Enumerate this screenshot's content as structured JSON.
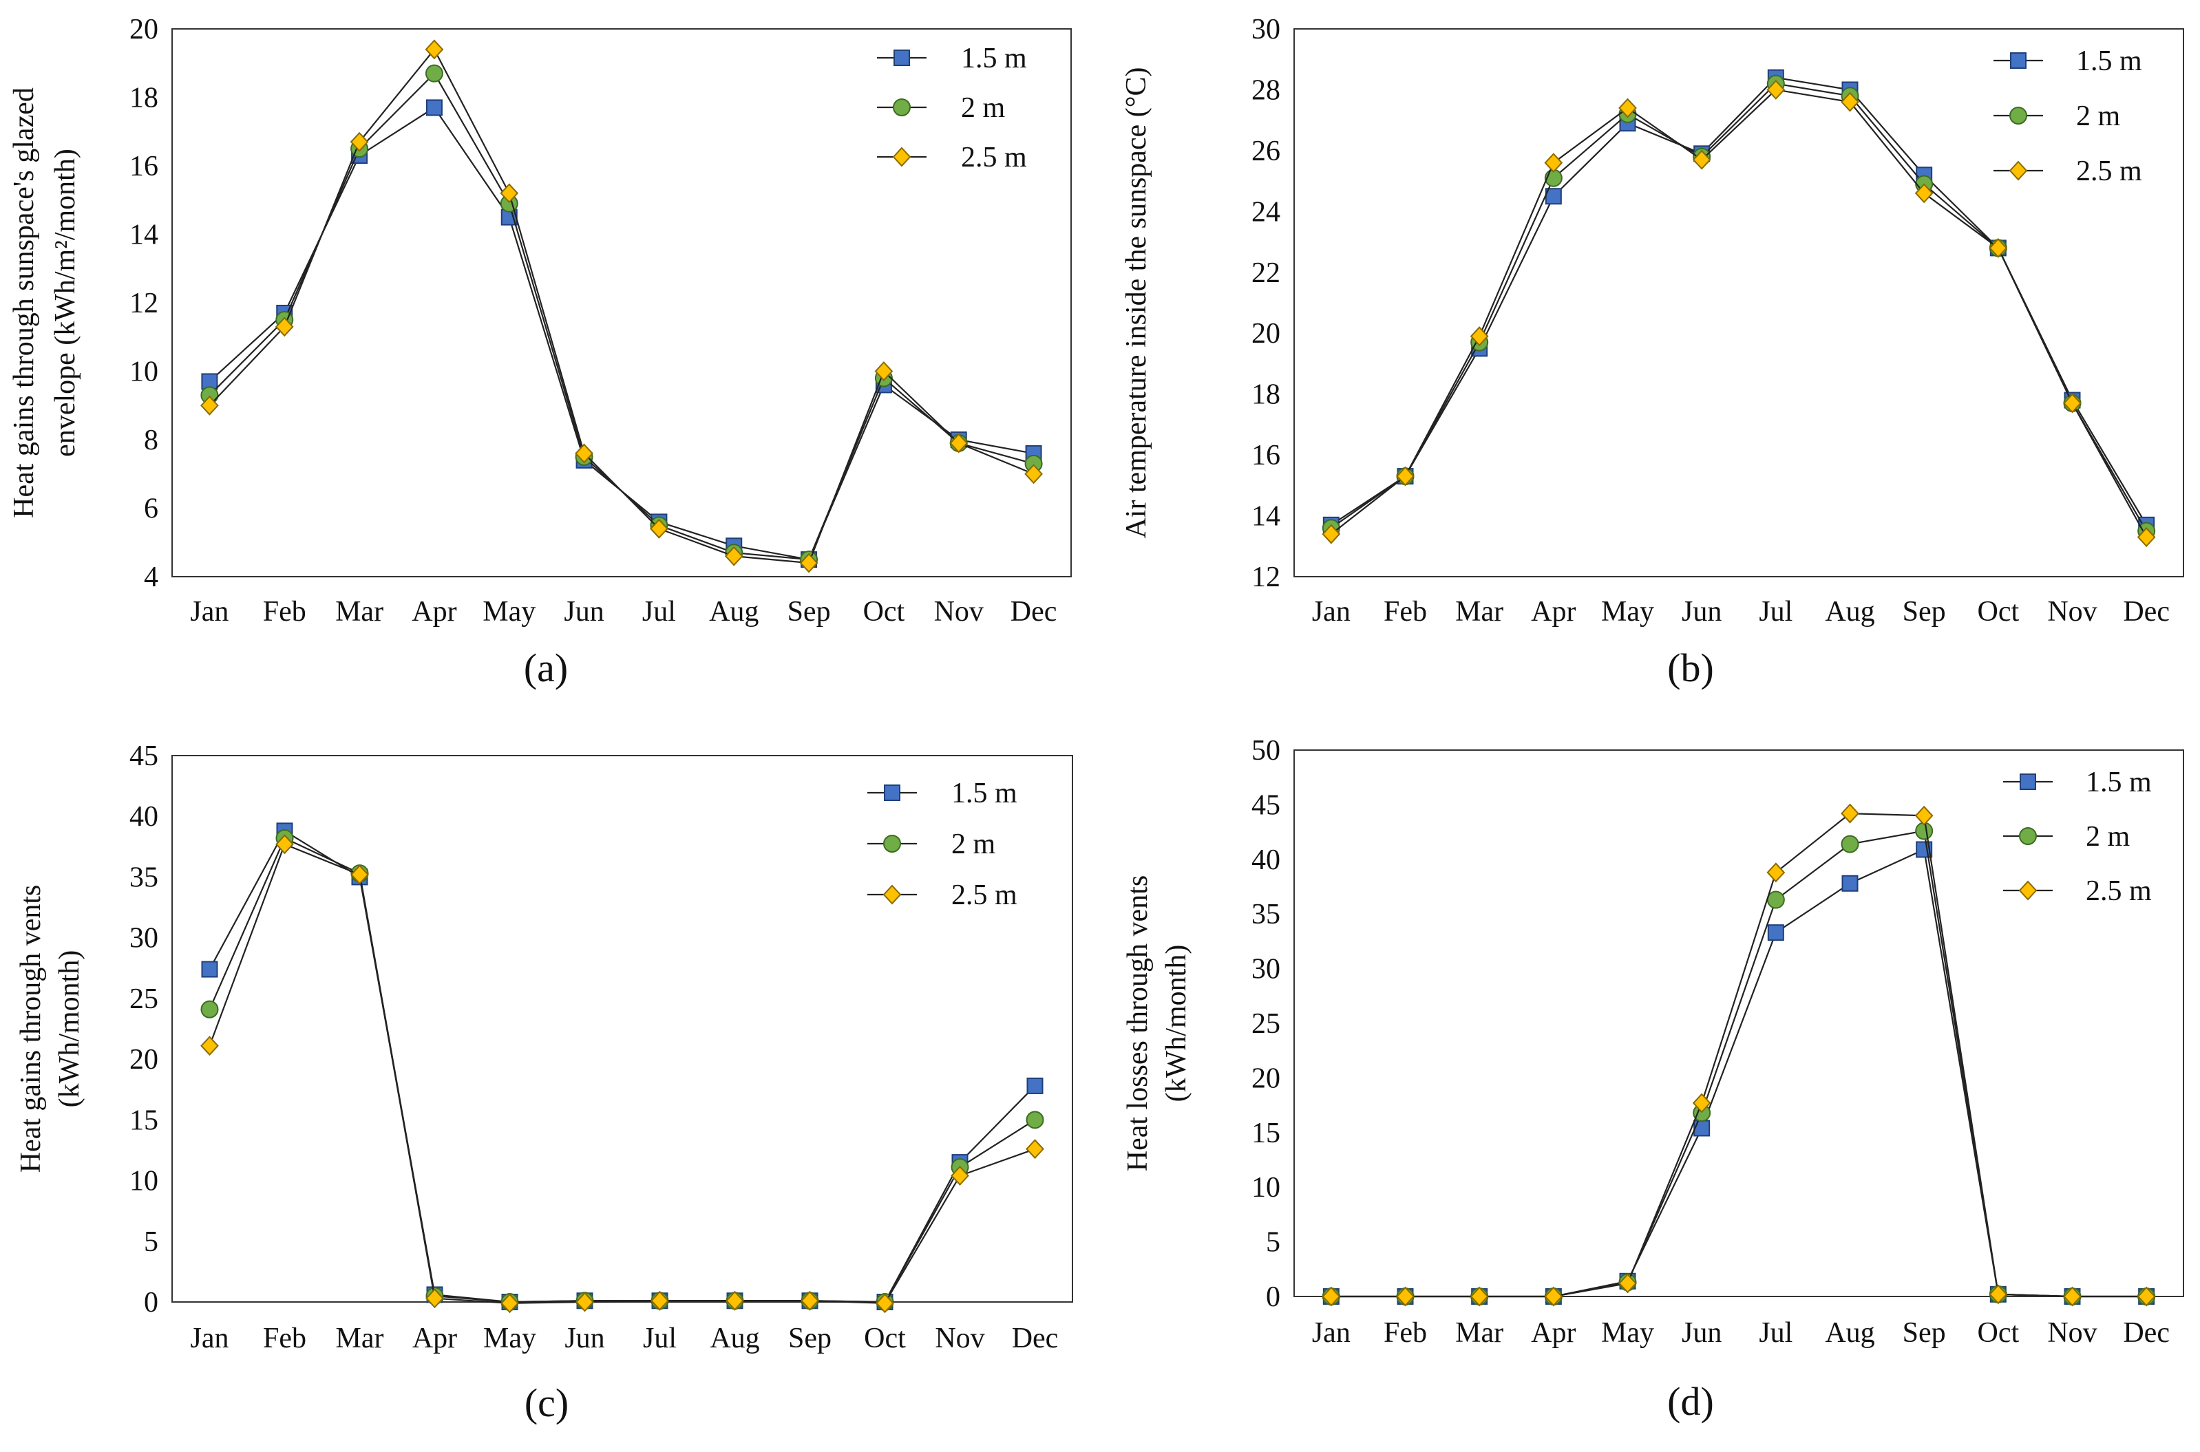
{
  "figure": {
    "description_panels": [
      "(a)",
      "(b)",
      "(c)",
      "(d)"
    ]
  },
  "series_styles": [
    {
      "name": "1.5 m",
      "marker": "square",
      "fill": "#4472C4",
      "stroke": "#1F3F7A"
    },
    {
      "name": "2 m",
      "marker": "circle",
      "fill": "#70AD47",
      "stroke": "#3E6B22"
    },
    {
      "name": "2.5 m",
      "marker": "diamond",
      "fill": "#FFC000",
      "stroke": "#8A6A00"
    }
  ],
  "chart_data": [
    {
      "type": "line",
      "panel_label": "(a)",
      "title": "",
      "ylabel": [
        "Heat gains through sunspace's glazed",
        "envelope (kWh/m²/month)"
      ],
      "xlabel": "",
      "categories": [
        "Jan",
        "Feb",
        "Mar",
        "Apr",
        "May",
        "Jun",
        "Jul",
        "Aug",
        "Sep",
        "Oct",
        "Nov",
        "Dec"
      ],
      "ylim": [
        4,
        20
      ],
      "yticks": [
        "4",
        "6",
        "8",
        "10",
        "12",
        "14",
        "16",
        "18",
        "20"
      ],
      "legend": "top-right",
      "series": [
        {
          "name": "1.5 m",
          "values": [
            9.7,
            11.7,
            16.3,
            17.7,
            14.5,
            7.4,
            5.6,
            4.9,
            4.5,
            9.6,
            8.0,
            7.6
          ]
        },
        {
          "name": "2 m",
          "values": [
            9.3,
            11.5,
            16.5,
            18.7,
            14.9,
            7.5,
            5.5,
            4.7,
            4.5,
            9.8,
            7.9,
            7.3
          ]
        },
        {
          "name": "2.5 m",
          "values": [
            9.0,
            11.3,
            16.7,
            19.4,
            15.2,
            7.6,
            5.4,
            4.6,
            4.4,
            10.0,
            7.9,
            7.0
          ]
        }
      ]
    },
    {
      "type": "line",
      "panel_label": "(b)",
      "title": "",
      "ylabel": [
        "Air temperature inside the sunspace (°C)"
      ],
      "xlabel": "",
      "categories": [
        "Jan",
        "Feb",
        "Mar",
        "Apr",
        "May",
        "Jun",
        "Jul",
        "Aug",
        "Sep",
        "Oct",
        "Nov",
        "Dec"
      ],
      "ylim": [
        12,
        30
      ],
      "yticks": [
        "12",
        "14",
        "16",
        "18",
        "20",
        "22",
        "24",
        "26",
        "28",
        "30"
      ],
      "legend": "top-right",
      "series": [
        {
          "name": "1.5 m",
          "values": [
            13.7,
            15.3,
            19.5,
            24.5,
            26.9,
            25.9,
            28.4,
            28.0,
            25.2,
            22.8,
            17.8,
            13.7
          ]
        },
        {
          "name": "2 m",
          "values": [
            13.6,
            15.3,
            19.7,
            25.1,
            27.2,
            25.8,
            28.2,
            27.8,
            24.9,
            22.8,
            17.7,
            13.5
          ]
        },
        {
          "name": "2.5 m",
          "values": [
            13.4,
            15.3,
            19.9,
            25.6,
            27.4,
            25.7,
            28.0,
            27.6,
            24.6,
            22.8,
            17.7,
            13.3
          ]
        }
      ]
    },
    {
      "type": "line",
      "panel_label": "(c)",
      "title": "",
      "ylabel": [
        "Heat gains through vents",
        "(kWh/month)"
      ],
      "xlabel": "",
      "categories": [
        "Jan",
        "Feb",
        "Mar",
        "Apr",
        "May",
        "Jun",
        "Jul",
        "Aug",
        "Sep",
        "Oct",
        "Nov",
        "Dec"
      ],
      "ylim": [
        0,
        45
      ],
      "yticks": [
        "0",
        "5",
        "10",
        "15",
        "20",
        "25",
        "30",
        "35",
        "40",
        "45"
      ],
      "legend": "top-right",
      "series": [
        {
          "name": "1.5 m",
          "values": [
            27.4,
            38.8,
            35.0,
            0.6,
            0.0,
            0.1,
            0.1,
            0.1,
            0.1,
            0.0,
            11.5,
            17.8
          ]
        },
        {
          "name": "2 m",
          "values": [
            24.1,
            38.2,
            35.3,
            0.5,
            0.0,
            0.1,
            0.1,
            0.1,
            0.1,
            0.0,
            11.1,
            15.0
          ]
        },
        {
          "name": "2.5 m",
          "values": [
            21.1,
            37.7,
            35.2,
            0.3,
            -0.1,
            0.0,
            0.1,
            0.1,
            0.1,
            -0.1,
            10.4,
            12.6
          ]
        }
      ]
    },
    {
      "type": "line",
      "panel_label": "(d)",
      "title": "",
      "ylabel": [
        "Heat losses through vents",
        "(kWh/month)"
      ],
      "xlabel": "",
      "categories": [
        "Jan",
        "Feb",
        "Mar",
        "Apr",
        "May",
        "Jun",
        "Jul",
        "Aug",
        "Sep",
        "Oct",
        "Nov",
        "Dec"
      ],
      "ylim": [
        0,
        50
      ],
      "yticks": [
        "0",
        "5",
        "10",
        "15",
        "20",
        "25",
        "30",
        "35",
        "40",
        "45",
        "50"
      ],
      "legend": "top-right",
      "series": [
        {
          "name": "1.5 m",
          "values": [
            0.0,
            0.0,
            0.0,
            0.0,
            1.4,
            15.4,
            33.3,
            37.8,
            40.9,
            0.2,
            0.0,
            0.0
          ]
        },
        {
          "name": "2 m",
          "values": [
            0.0,
            0.0,
            0.0,
            0.0,
            1.3,
            16.8,
            36.3,
            41.4,
            42.6,
            0.2,
            0.0,
            0.0
          ]
        },
        {
          "name": "2.5 m",
          "values": [
            0.0,
            0.0,
            0.0,
            0.0,
            1.2,
            17.7,
            38.8,
            44.2,
            44.0,
            0.2,
            0.0,
            0.0
          ]
        }
      ]
    }
  ]
}
